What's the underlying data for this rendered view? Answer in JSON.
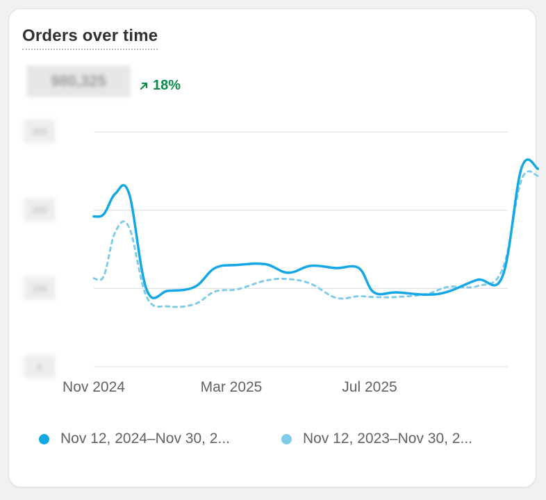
{
  "card": {
    "title": "Orders over time",
    "total_label": "980,325",
    "change_label": "18%",
    "change_icon": "arrow-up-right-icon",
    "change_color": "#0c8a4a"
  },
  "colors": {
    "current": "#13a7e6",
    "previous": "#7fcbea",
    "grid": "#e3e3e3"
  },
  "chart_data": {
    "type": "line",
    "title": "Orders over time",
    "xlabel": "",
    "ylabel": "",
    "x_ticks": [
      "Nov 2024",
      "Mar 2025",
      "Jul 2025"
    ],
    "y_ticks": [
      "300",
      "200",
      "100",
      "0"
    ],
    "ylim": [
      0,
      300
    ],
    "grid": true,
    "legend_placement": "bottom",
    "x": [
      "2024-11",
      "2024-12",
      "2025-01",
      "2025-02",
      "2025-03",
      "2025-04",
      "2025-05",
      "2025-06",
      "2025-07",
      "2025-08",
      "2025-09",
      "2025-10",
      "2025-11"
    ],
    "series": [
      {
        "name": "Nov 12, 2024–Nov 30, 2...",
        "style": "solid",
        "points": [
          [
            "2024-11-12",
            192
          ],
          [
            "2024-11-20",
            195
          ],
          [
            "2024-11-29",
            221
          ],
          [
            "2024-12-10",
            221
          ],
          [
            "2024-12-24",
            98
          ],
          [
            "2025-01-10",
            97
          ],
          [
            "2025-01-31",
            102
          ],
          [
            "2025-02-16",
            126
          ],
          [
            "2025-03-06",
            130
          ],
          [
            "2025-03-28",
            131
          ],
          [
            "2025-04-15",
            120
          ],
          [
            "2025-05-03",
            129
          ],
          [
            "2025-05-23",
            126
          ],
          [
            "2025-06-10",
            126
          ],
          [
            "2025-06-22",
            95
          ],
          [
            "2025-07-10",
            95
          ],
          [
            "2025-08-03",
            92
          ],
          [
            "2025-08-20",
            96
          ],
          [
            "2025-09-12",
            111
          ],
          [
            "2025-10-02",
            116
          ],
          [
            "2025-10-17",
            254
          ],
          [
            "2025-10-30",
            253
          ]
        ]
      },
      {
        "name": "Nov 12, 2023–Nov 30, 2...",
        "style": "dashed",
        "points": [
          [
            "2024-11-12",
            113
          ],
          [
            "2024-11-20",
            116
          ],
          [
            "2024-11-29",
            172
          ],
          [
            "2024-12-10",
            178
          ],
          [
            "2024-12-24",
            89
          ],
          [
            "2025-01-10",
            77
          ],
          [
            "2025-01-31",
            80
          ],
          [
            "2025-02-16",
            96
          ],
          [
            "2025-03-06",
            99
          ],
          [
            "2025-03-28",
            110
          ],
          [
            "2025-04-15",
            112
          ],
          [
            "2025-05-03",
            106
          ],
          [
            "2025-05-23",
            88
          ],
          [
            "2025-06-10",
            90
          ],
          [
            "2025-06-22",
            89
          ],
          [
            "2025-07-10",
            89
          ],
          [
            "2025-08-03",
            93
          ],
          [
            "2025-08-20",
            102
          ],
          [
            "2025-09-12",
            103
          ],
          [
            "2025-10-02",
            125
          ],
          [
            "2025-10-17",
            239
          ],
          [
            "2025-10-30",
            244
          ]
        ]
      }
    ]
  },
  "legend": [
    {
      "label": "Nov 12, 2024–Nov 30, 2...",
      "color": "#13a7e6"
    },
    {
      "label": "Nov 12, 2023–Nov 30, 2...",
      "color": "#7fcbea"
    }
  ]
}
